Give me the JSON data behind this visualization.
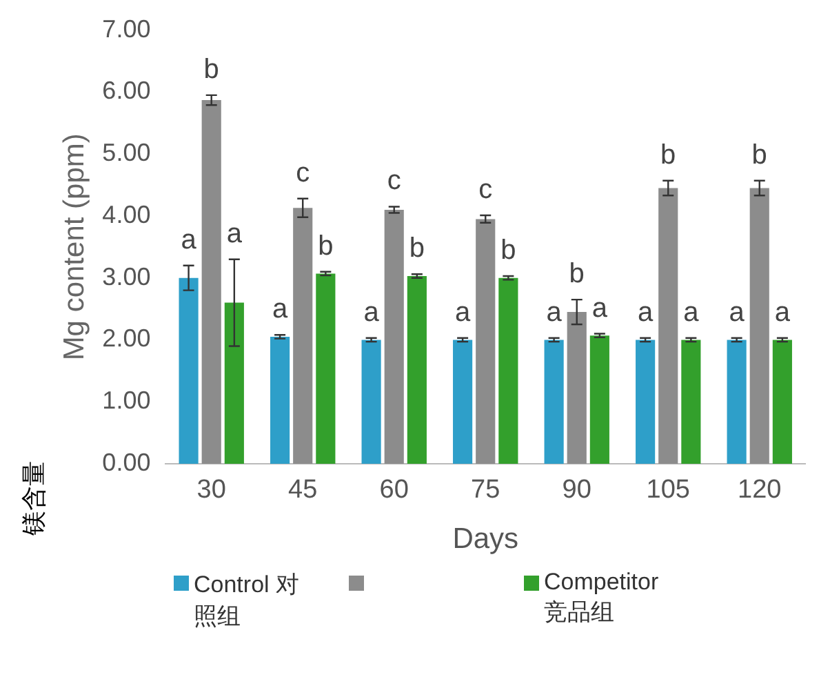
{
  "chart_data": {
    "type": "bar",
    "ylabel": "Mg content (ppm)",
    "xlabel": "Days",
    "annotations": [
      "镁含量"
    ],
    "categories": [
      "30",
      "45",
      "60",
      "75",
      "90",
      "105",
      "120"
    ],
    "series": [
      {
        "name": "Control 对照组",
        "color": "#2e9fc9",
        "values": [
          3.0,
          2.05,
          2.0,
          2.0,
          2.0,
          2.0,
          2.0
        ],
        "errors": [
          0.2,
          0.03,
          0.03,
          0.03,
          0.03,
          0.03,
          0.03
        ],
        "value_labels": [
          "a",
          "a",
          "a",
          "a",
          "a",
          "a",
          "a"
        ]
      },
      {
        "color": "#8c8c8c",
        "values": [
          5.87,
          4.13,
          4.1,
          3.95,
          2.45,
          4.45,
          4.45
        ],
        "errors": [
          0.08,
          0.15,
          0.05,
          0.06,
          0.2,
          0.12,
          0.12
        ],
        "value_labels": [
          "b",
          "c",
          "c",
          "c",
          "b",
          "b",
          "b"
        ]
      },
      {
        "name": "Competitor 竞品组",
        "color": "#33a02c",
        "values": [
          2.6,
          3.07,
          3.03,
          3.0,
          2.07,
          2.0,
          2.0
        ],
        "errors": [
          0.7,
          0.03,
          0.03,
          0.03,
          0.03,
          0.03,
          0.03
        ],
        "value_labels": [
          "a",
          "b",
          "b",
          "b",
          "a",
          "a",
          "a"
        ]
      }
    ],
    "ylim": [
      0,
      7
    ],
    "yticks": [
      {
        "value": 0,
        "label": "0.00"
      },
      {
        "value": 1,
        "label": "1.00"
      },
      {
        "value": 2,
        "label": "2.00"
      },
      {
        "value": 3,
        "label": "3.00"
      },
      {
        "value": 4,
        "label": "4.00"
      },
      {
        "value": 5,
        "label": "5.00"
      },
      {
        "value": 6,
        "label": "6.00"
      },
      {
        "value": 7,
        "label": "7.00"
      }
    ],
    "grid": false,
    "legend": "bottom"
  }
}
